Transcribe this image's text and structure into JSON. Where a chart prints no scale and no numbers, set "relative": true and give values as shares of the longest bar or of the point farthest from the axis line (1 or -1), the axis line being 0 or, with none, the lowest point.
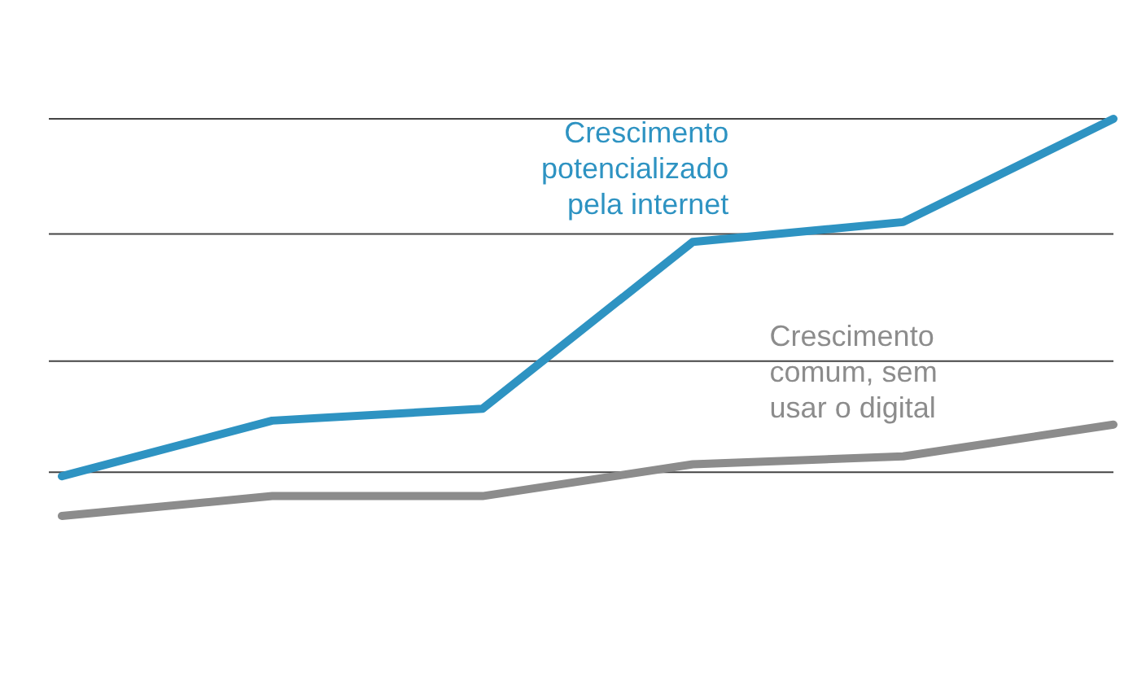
{
  "chart_data": {
    "type": "line",
    "relative": true,
    "categories": [
      null,
      null,
      null,
      null,
      null,
      null
    ],
    "legend": false,
    "marker": "none",
    "line_style": "solid",
    "series": [
      {
        "name": "Crescimento potencializado pela internet",
        "color": "#2e93c2",
        "values": [
          0.1,
          0.24,
          0.27,
          0.69,
          0.74,
          1
        ]
      },
      {
        "name": "Crescimento comum, sem usar o digital",
        "color": "#8c8c8c",
        "values": [
          0,
          0.05,
          0.05,
          0.13,
          0.15,
          0.23
        ]
      }
    ],
    "ref_lines": [
      {
        "axis": "y",
        "value": 0.11,
        "color": "#444444"
      },
      {
        "axis": "y",
        "value": 0.39,
        "color": "#444444"
      },
      {
        "axis": "y",
        "value": 0.71,
        "color": "#444444"
      },
      {
        "axis": "y",
        "value": 1,
        "color": "#444444"
      }
    ]
  }
}
